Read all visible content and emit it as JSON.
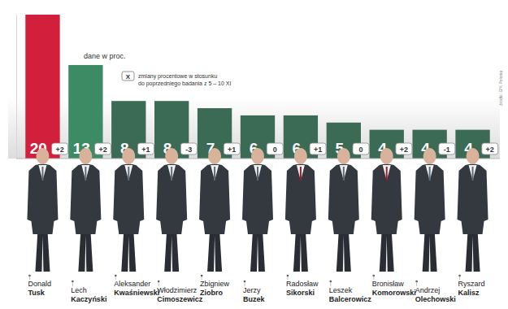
{
  "chart_data": {
    "type": "bar",
    "categories": [
      "Donald\nTusk",
      "Lech\nKaczyński",
      "Aleksander\nKwaśniewski",
      "Włodzimierz\nCimoszewicz",
      "Zbigniew\nZiobro",
      "Jerzy\nBuzek",
      "Radosław\nSikorski",
      "Leszek\nBalcerowicz",
      "Bronisław\nKomorowski",
      "Andrzej\nOlechowski",
      "Ryszard\nKalisz"
    ],
    "values": [
      20,
      13,
      8,
      8,
      7,
      6,
      6,
      5,
      4,
      4,
      4
    ],
    "colors": [
      "#d11f3c",
      "#3d8b64",
      "#3b6a55",
      "#3b6a55",
      "#3b6a55",
      "#3b6a55",
      "#3b6a55",
      "#3b6a55",
      "#3b6a55",
      "#3b6a55",
      "#3b6a55"
    ],
    "data_labels": true,
    "ylim": [
      0,
      20
    ],
    "yticks": [],
    "tick_labels": false,
    "changes": {
      "values": [
        2,
        2,
        1,
        -3,
        1,
        0,
        1,
        0,
        2,
        -1,
        2
      ],
      "value_labels": [
        "+2",
        "+2",
        "+1",
        "-3",
        "+1",
        "0",
        "+1",
        "0",
        "+2",
        "-1",
        "+2"
      ]
    },
    "annotations": {
      "units": "dane w proc.",
      "change_key_symbol": "X",
      "change_key": [
        "zmiany procentowe w stosunku",
        "do poprzedniego badania z 5 – 10 XI"
      ]
    },
    "source": "źródło: GfK Polonia"
  }
}
